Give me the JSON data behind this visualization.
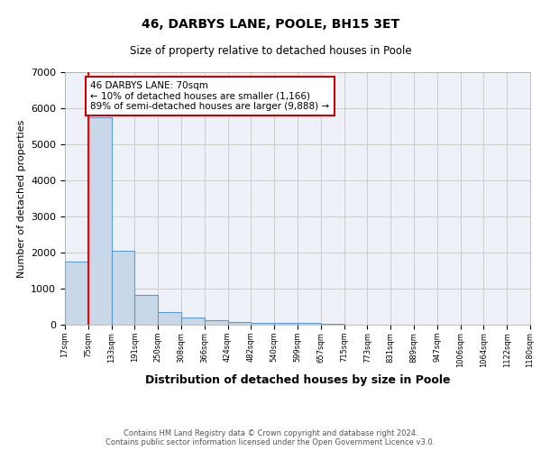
{
  "title": "46, DARBYS LANE, POOLE, BH15 3ET",
  "subtitle": "Size of property relative to detached houses in Poole",
  "xlabel": "Distribution of detached houses by size in Poole",
  "ylabel": "Number of detached properties",
  "bar_values": [
    1750,
    5750,
    2050,
    825,
    340,
    200,
    120,
    80,
    60,
    50,
    40,
    20,
    0,
    0,
    0,
    0,
    0,
    0,
    0,
    0
  ],
  "categories": [
    "17sqm",
    "75sqm",
    "133sqm",
    "191sqm",
    "250sqm",
    "308sqm",
    "366sqm",
    "424sqm",
    "482sqm",
    "540sqm",
    "599sqm",
    "657sqm",
    "715sqm",
    "773sqm",
    "831sqm",
    "889sqm",
    "947sqm",
    "1006sqm",
    "1064sqm",
    "1122sqm",
    "1180sqm"
  ],
  "bar_color": "#c8d8e8",
  "bar_edge_color": "#5b9bd5",
  "annotation_text": "46 DARBYS LANE: 70sqm\n← 10% of detached houses are smaller (1,166)\n89% of semi-detached houses are larger (9,888) →",
  "annotation_box_color": "#cc0000",
  "ylim": [
    0,
    7000
  ],
  "yticks": [
    0,
    1000,
    2000,
    3000,
    4000,
    5000,
    6000,
    7000
  ],
  "footer_line1": "Contains HM Land Registry data © Crown copyright and database right 2024.",
  "footer_line2": "Contains public sector information licensed under the Open Government Licence v3.0.",
  "background_color": "#ffffff",
  "grid_color": "#cccccc",
  "ax_bg_color": "#eef2f8"
}
